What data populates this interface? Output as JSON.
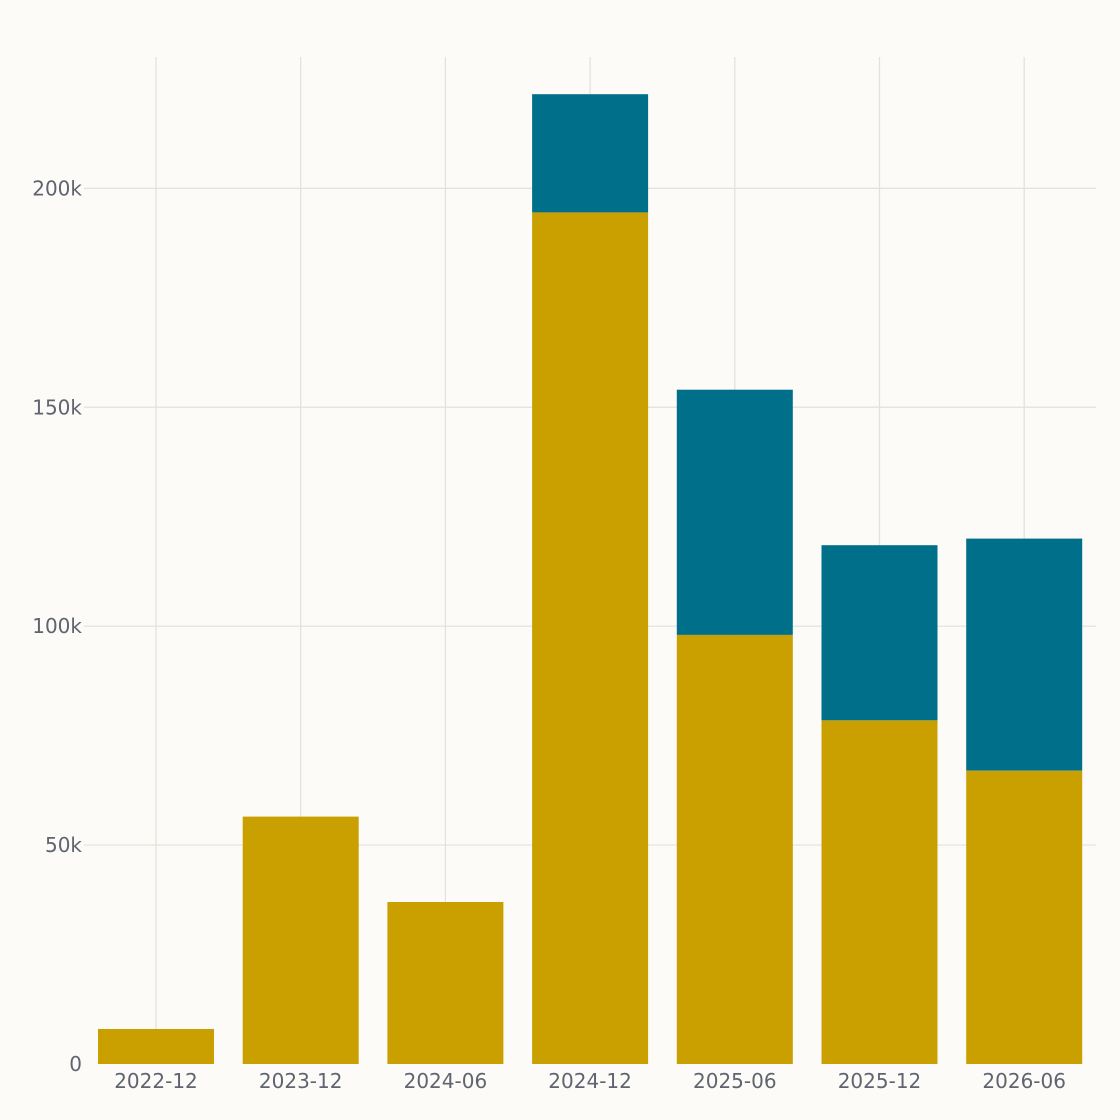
{
  "chart_data": {
    "type": "bar",
    "stacked": true,
    "title": "",
    "xlabel": "",
    "ylabel": "",
    "categories": [
      "2022-12",
      "2023-12",
      "2024-06",
      "2024-12",
      "2025-06",
      "2025-12",
      "2026-06"
    ],
    "series": [
      {
        "color": "#c9a000",
        "values": [
          8000,
          56500,
          37000,
          194500,
          98000,
          78500,
          67000
        ]
      },
      {
        "color": "#006f8a",
        "values": [
          0,
          0,
          0,
          27000,
          56000,
          40000,
          53000
        ]
      }
    ],
    "ylim": [
      0,
      230000
    ],
    "yticks": [
      {
        "value": 0,
        "label": "0"
      },
      {
        "value": 50000,
        "label": "50k"
      },
      {
        "value": 100000,
        "label": "100k"
      },
      {
        "value": 150000,
        "label": "150k"
      },
      {
        "value": 200000,
        "label": "200k"
      }
    ],
    "grid": true,
    "legend": "none"
  }
}
